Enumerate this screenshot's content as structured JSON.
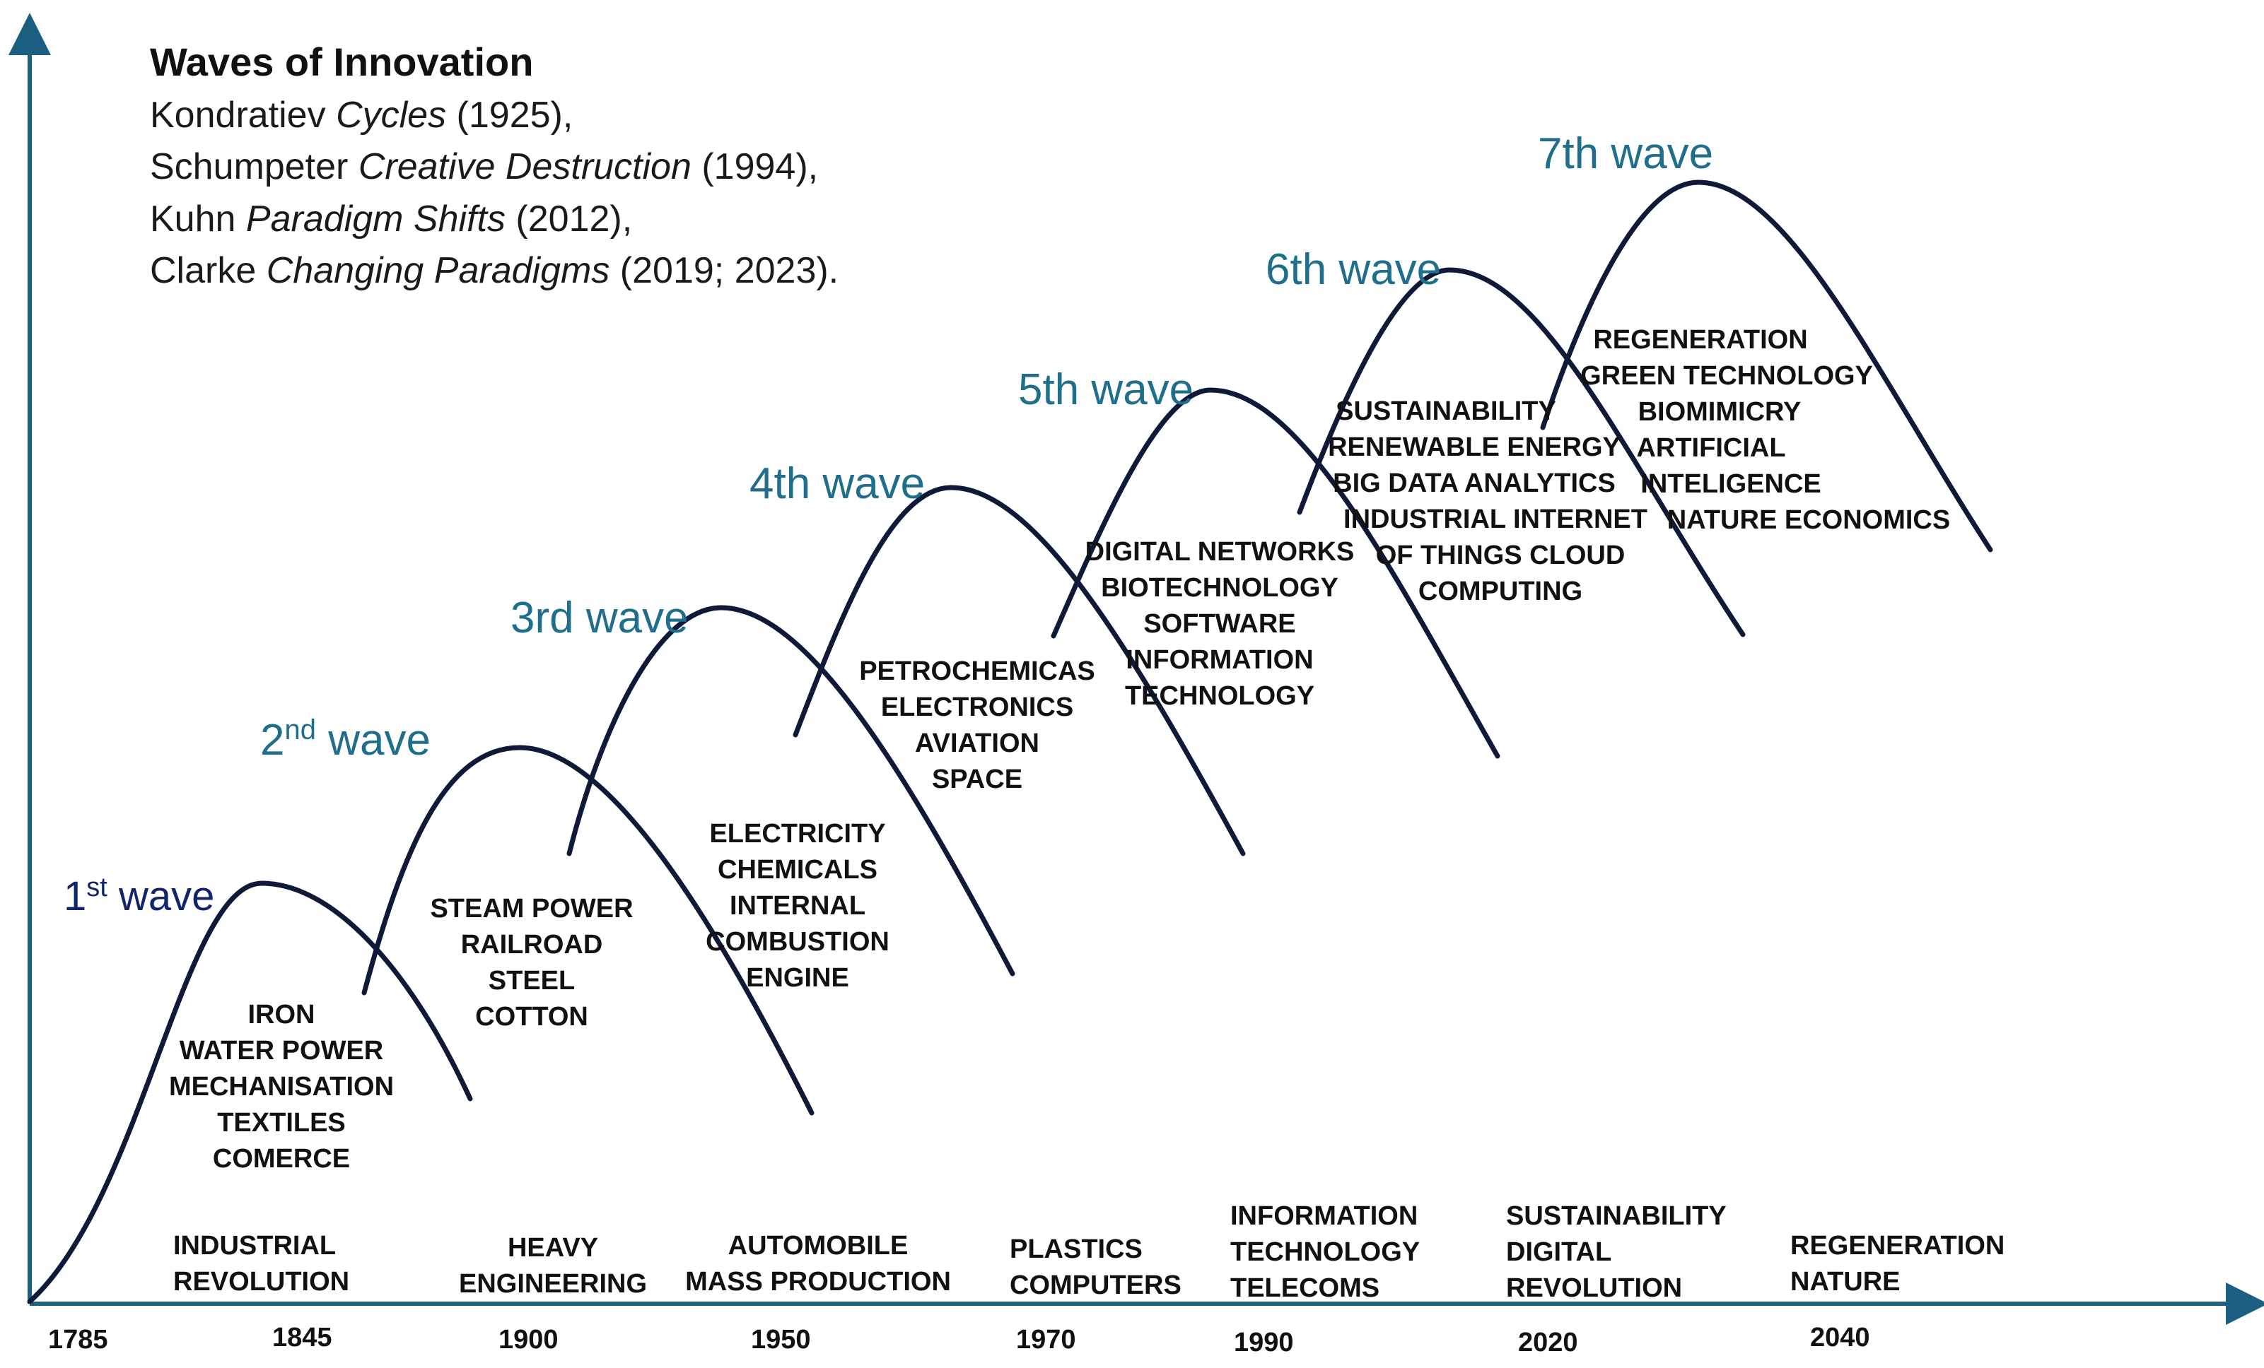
{
  "title": "Waves of Innovation",
  "citations": [
    {
      "author": "Kondratiev",
      "work": "Cycles",
      "year": "(1925),"
    },
    {
      "author": "Schumpeter",
      "work": "Creative Destruction",
      "year": "(1994),"
    },
    {
      "author": "Kuhn",
      "work": "Paradigm Shifts",
      "year": "(2012),"
    },
    {
      "author": "Clarke",
      "work": "Changing Paradigms",
      "year": "(2019; 2023)."
    }
  ],
  "waves": [
    {
      "ordinal": "1",
      "suffix": "st",
      "word": "wave",
      "tech": [
        "IRON",
        "WATER POWER",
        "MECHANISATION",
        "TEXTILES",
        "COMERCE"
      ],
      "era": [
        "INDUSTRIAL",
        "REVOLUTION"
      ],
      "year": "1785"
    },
    {
      "ordinal": "2",
      "suffix": "nd",
      "word": "wave",
      "tech": [
        "STEAM POWER",
        "RAILROAD",
        "STEEL",
        "COTTON"
      ],
      "era": [
        "HEAVY",
        "ENGINEERING"
      ],
      "year": "1845"
    },
    {
      "label": "3rd wave",
      "tech": [
        "ELECTRICITY",
        "CHEMICALS",
        "INTERNAL",
        "COMBUSTION",
        "ENGINE"
      ],
      "era": [
        "AUTOMOBILE",
        "MASS PRODUCTION"
      ],
      "year": "1900"
    },
    {
      "label": "4th wave",
      "tech": [
        "PETROCHEMICAS",
        "ELECTRONICS",
        "AVIATION",
        "SPACE"
      ],
      "era": [
        "PLASTICS",
        "COMPUTERS"
      ],
      "year": "1950"
    },
    {
      "label": "5th wave",
      "tech": [
        "DIGITAL NETWORKS",
        "BIOTECHNOLOGY",
        "SOFTWARE",
        "INFORMATION",
        "TECHNOLOGY"
      ],
      "era": [
        "INFORMATION",
        "TECHNOLOGY",
        "TELECOMS"
      ],
      "year": "1970"
    },
    {
      "label": "6th wave",
      "tech": [
        "SUSTAINABILITY",
        "RENEWABLE ENERGY",
        "BIG DATA ANALYTICS",
        "INDUSTRIAL INTERNET",
        "OF THINGS CLOUD",
        "COMPUTING"
      ],
      "era": [
        "SUSTAINABILITY",
        "DIGITAL",
        "REVOLUTION"
      ],
      "year": "1990"
    },
    {
      "label": "7th wave",
      "tech": [
        "REGENERATION",
        "GREEN TECHNOLOGY",
        "BIOMIMICRY",
        "ARTIFICIAL",
        "INTELIGENCE",
        "NATURE ECONOMICS"
      ],
      "era": [
        "REGENERATION",
        "NATURE"
      ],
      "year": "2020"
    }
  ],
  "extra_years": [
    "2040"
  ],
  "colors": {
    "wave_label": "#1f6e8c",
    "first_wave_label": "#12246a",
    "curve": "#0f1a38",
    "axis": "#1d5f80"
  }
}
